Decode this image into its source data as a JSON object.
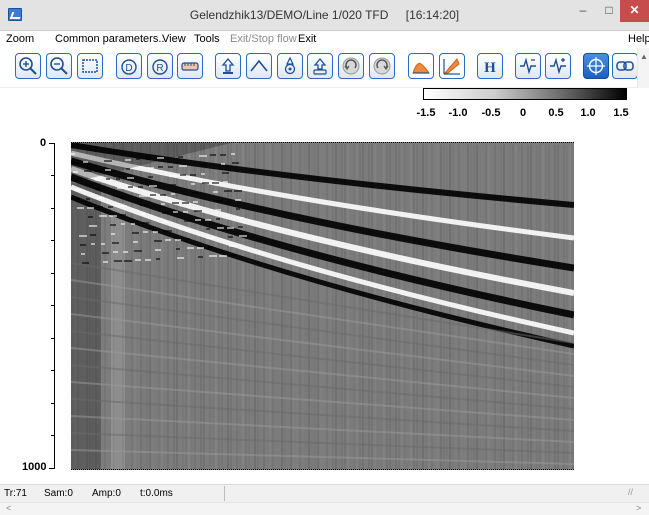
{
  "window": {
    "title": "Gelendzhik13/DEMO/Line 1/020 TFD",
    "time": "[16:14:20]",
    "minimize": "–",
    "maximize": "□",
    "close": "✕"
  },
  "menu": {
    "items": [
      {
        "label": "Zoom",
        "enabled": true
      },
      {
        "label": "Common parameters...",
        "enabled": true
      },
      {
        "label": "View",
        "enabled": true
      },
      {
        "label": "Tools",
        "enabled": true
      },
      {
        "label": "Exit/Stop flow",
        "enabled": false
      },
      {
        "label": "Exit",
        "enabled": true
      },
      {
        "label": "Help",
        "enabled": true
      }
    ]
  },
  "toolbar": {
    "buttons": [
      "zoom-in-icon",
      "zoom-out-icon",
      "zoom-window-icon",
      "d-icon",
      "r-icon",
      "ruler-icon",
      "pick-up-icon",
      "pick-line-icon",
      "pick-settings-icon",
      "pick-down-icon",
      "undo-icon",
      "redo-icon",
      "spectrum-icon",
      "velocity-icon",
      "h-icon",
      "trace-minus-icon",
      "trace-plus-icon",
      "crosshair-icon",
      "link-icon"
    ]
  },
  "colorbar": {
    "ticks": [
      "-1.5",
      "-1.0",
      "-0.5",
      "0",
      "0.5",
      "1.0",
      "1.5"
    ]
  },
  "axis": {
    "top_label": "0",
    "bottom_label": "1000"
  },
  "status": {
    "trace": "Tr:71",
    "sample": "Sam:0",
    "amplitude": "Amp:0",
    "time": "t:0.0ms"
  }
}
